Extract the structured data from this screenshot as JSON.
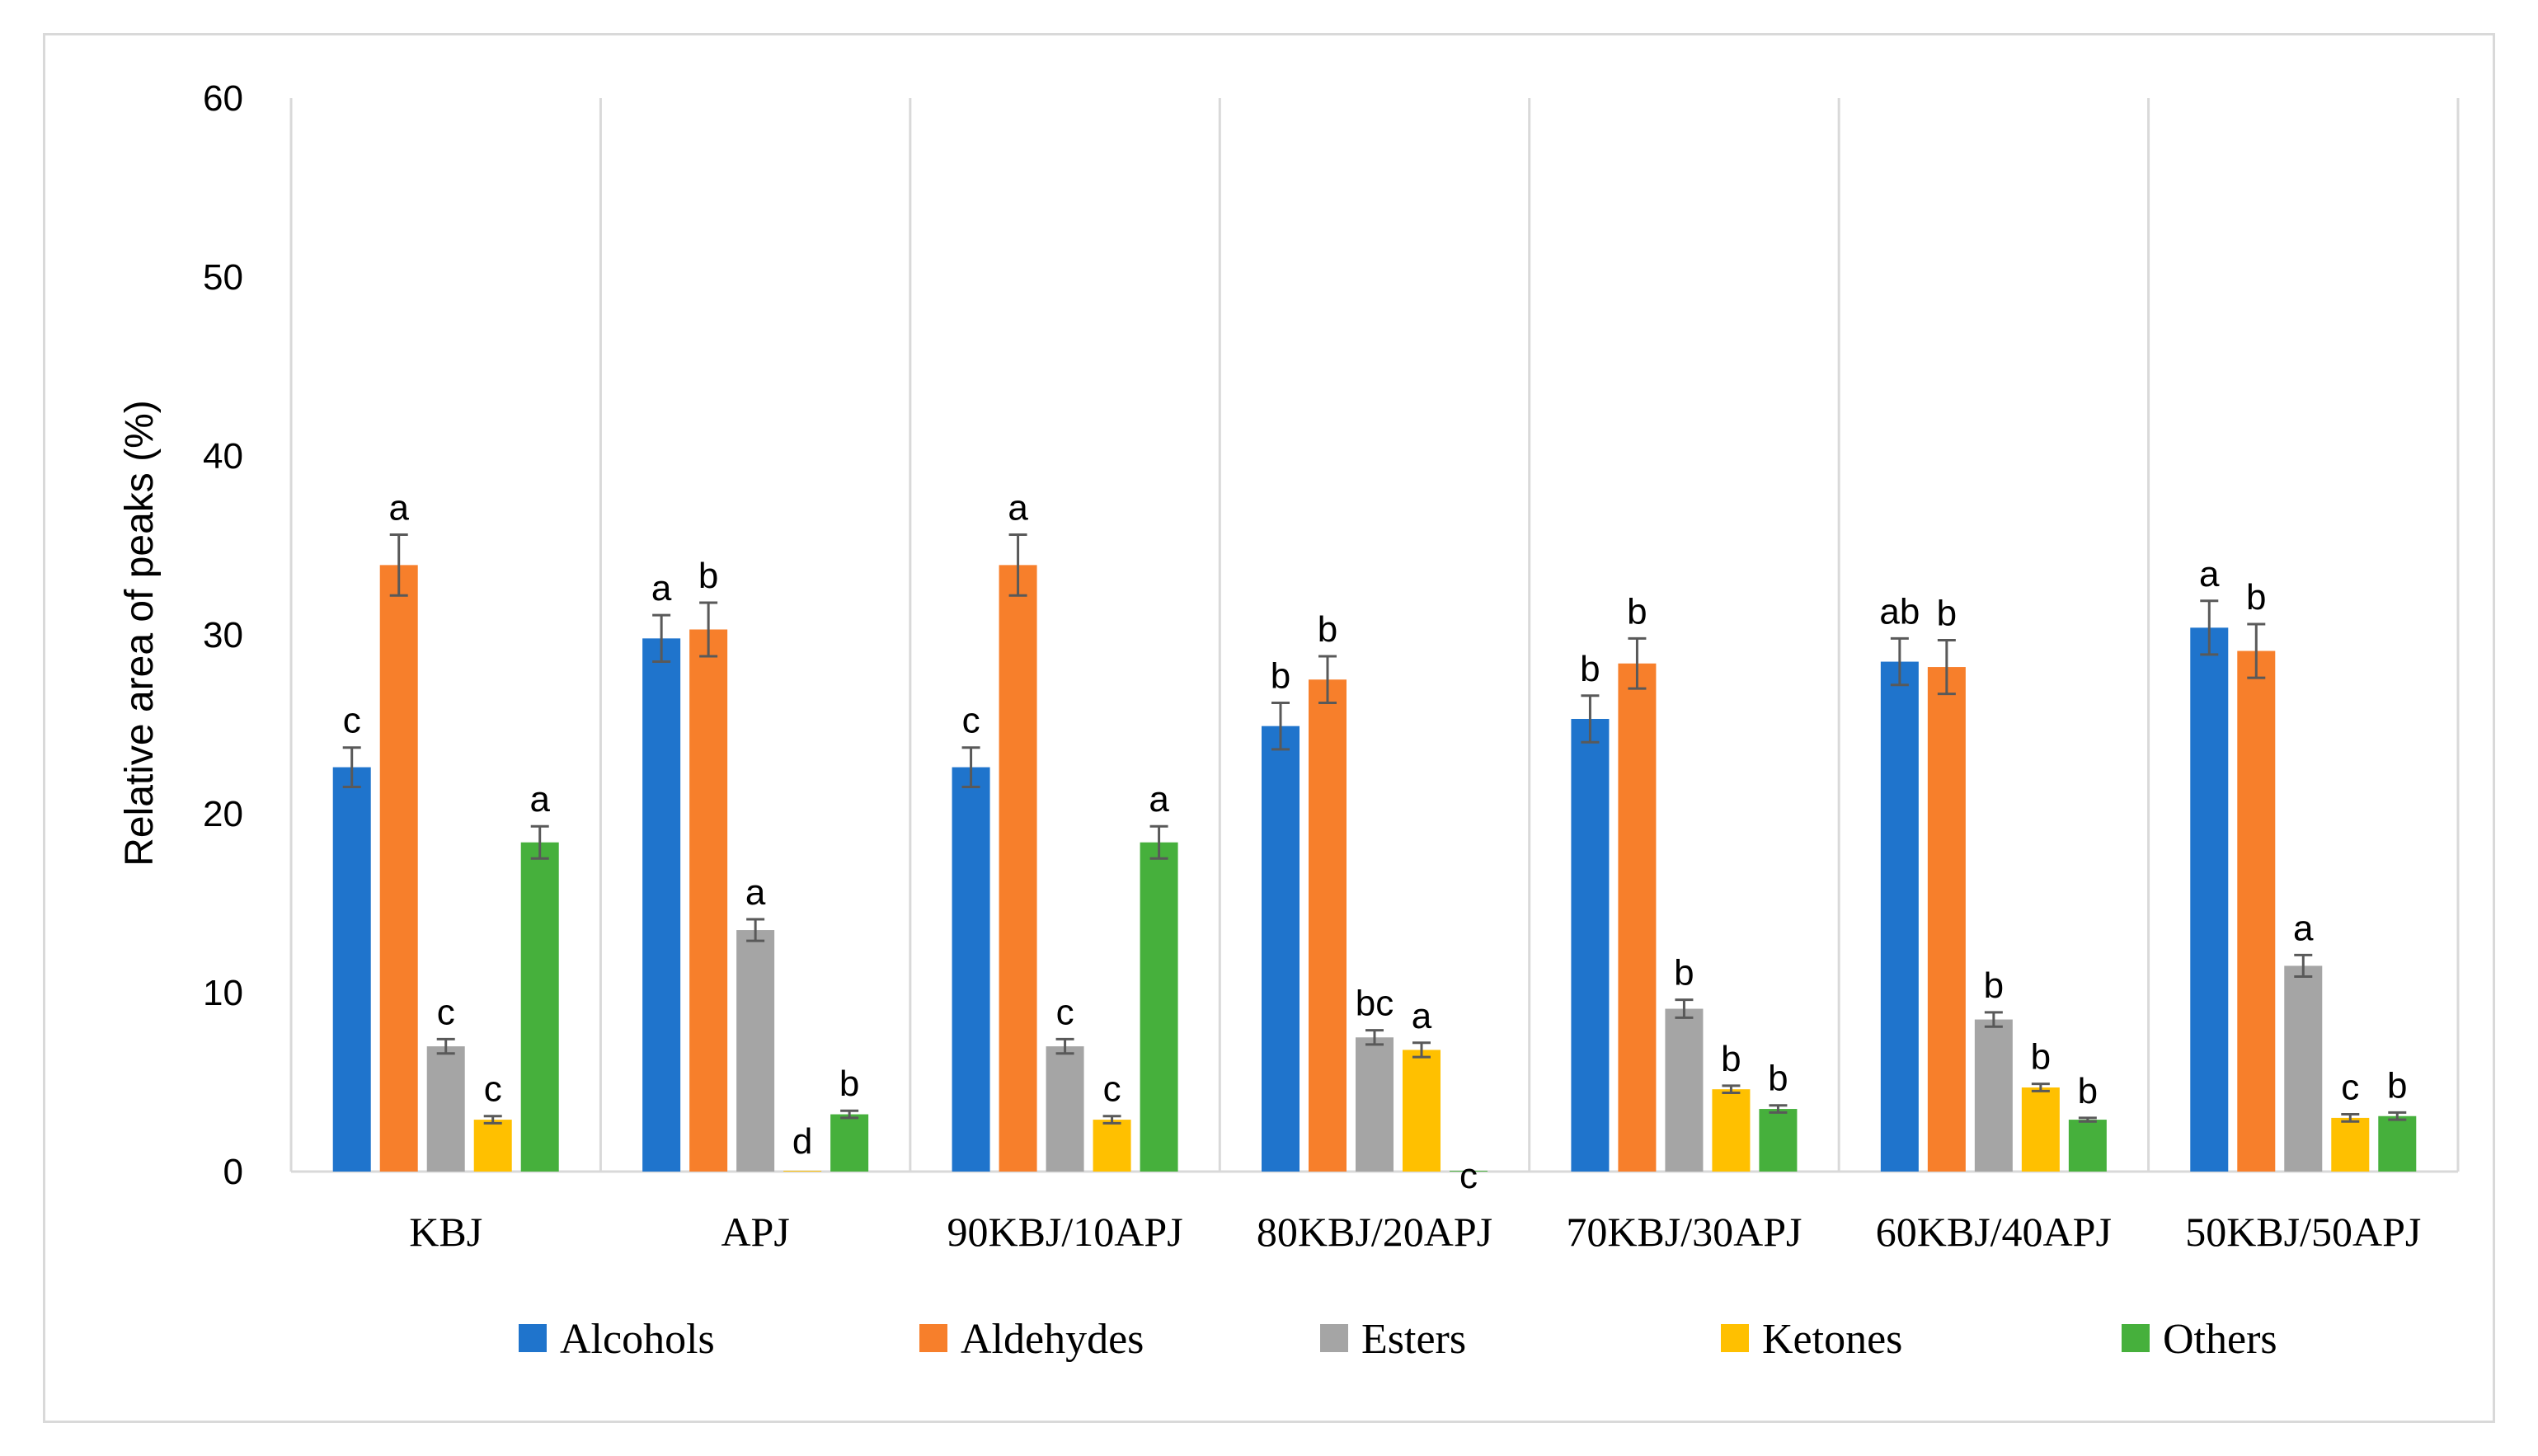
{
  "chart_data": {
    "type": "bar",
    "title": "",
    "xlabel": "",
    "ylabel": "Relative area of peaks (%)",
    "ylim": [
      0,
      60
    ],
    "yticks": [
      0,
      10,
      20,
      30,
      40,
      50,
      60
    ],
    "grid": "vertical category separators",
    "legend_position": "bottom",
    "categories": [
      "KBJ",
      "APJ",
      "90KBJ/10APJ",
      "80KBJ/20APJ",
      "70KBJ/30APJ",
      "60KBJ/40APJ",
      "50KBJ/50APJ"
    ],
    "series": [
      {
        "name": "Alcohols",
        "color": "#1f74cc",
        "values": [
          22.6,
          29.8,
          22.6,
          24.9,
          25.3,
          28.5,
          30.4
        ],
        "errors": [
          1.1,
          1.3,
          1.1,
          1.3,
          1.3,
          1.3,
          1.5
        ],
        "labels": [
          "c",
          "a",
          "c",
          "b",
          "b",
          "ab",
          "a"
        ]
      },
      {
        "name": "Aldehydes",
        "color": "#f77f2b",
        "values": [
          33.9,
          30.3,
          33.9,
          27.5,
          28.4,
          28.2,
          29.1
        ],
        "errors": [
          1.7,
          1.5,
          1.7,
          1.3,
          1.4,
          1.5,
          1.5
        ],
        "labels": [
          "a",
          "b",
          "a",
          "b",
          "b",
          "b",
          "b"
        ]
      },
      {
        "name": "Esters",
        "color": "#a5a5a5",
        "values": [
          7.0,
          13.5,
          7.0,
          7.5,
          9.1,
          8.5,
          11.5
        ],
        "errors": [
          0.4,
          0.6,
          0.4,
          0.4,
          0.5,
          0.4,
          0.6
        ],
        "labels": [
          "c",
          "a",
          "c",
          "bc",
          "b",
          "b",
          "a"
        ]
      },
      {
        "name": "Ketones",
        "color": "#ffc000",
        "values": [
          2.9,
          0.0,
          2.9,
          6.8,
          4.6,
          4.7,
          3.0
        ],
        "errors": [
          0.2,
          0.0,
          0.2,
          0.4,
          0.2,
          0.2,
          0.2
        ],
        "labels": [
          "c",
          "d",
          "c",
          "a",
          "b",
          "b",
          "c"
        ]
      },
      {
        "name": "Others",
        "color": "#46b03c",
        "values": [
          18.4,
          3.2,
          18.4,
          0.0,
          3.5,
          2.9,
          3.1
        ],
        "errors": [
          0.9,
          0.2,
          0.9,
          0.0,
          0.2,
          0.1,
          0.2
        ],
        "labels": [
          "a",
          "b",
          "a",
          "c",
          "b",
          "b",
          "b"
        ]
      }
    ]
  }
}
